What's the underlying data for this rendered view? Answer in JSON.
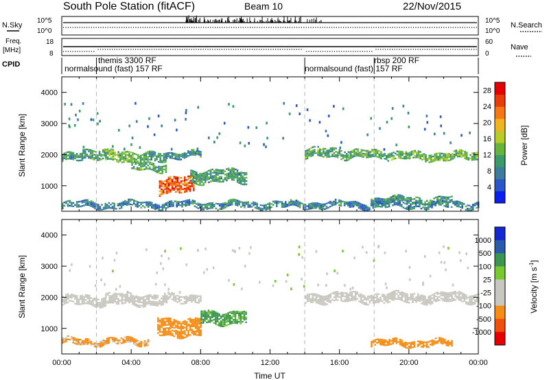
{
  "header": {
    "station": "South Pole Station (fitACF)",
    "beam": "Beam 10",
    "date": "22/Nov/2015"
  },
  "strips": {
    "nsky": {
      "label": "N.Sky",
      "ticks_left": [
        "10^5",
        "10^0"
      ],
      "right_label": "N.Search",
      "ticks_right": [
        "10^5",
        "10^0"
      ]
    },
    "freq": {
      "label_line1": "Freq.",
      "label_line2": "[MHz]",
      "ticks_left": [
        "18",
        "8"
      ],
      "right_label": "Nave",
      "ticks_right": [
        "60",
        "0"
      ]
    },
    "cpid": {
      "label": "CPID",
      "segments": [
        {
          "start_hour": 0,
          "text": "normalsound (fast) 157 RF",
          "row": 2
        },
        {
          "start_hour": 2.0,
          "text": "themis 3300 RF",
          "row": 1
        },
        {
          "start_hour": 14.0,
          "text": "normalsound (fast) 157 RF",
          "row": 2
        },
        {
          "start_hour": 18.0,
          "text": "rbsp 200 RF",
          "row": 1
        }
      ],
      "boundaries_hours": [
        2.0,
        14.0,
        18.0
      ]
    }
  },
  "chart_data": [
    {
      "type": "heatmap",
      "name": "power",
      "ylabel": "Slant Range [km]",
      "ylim": [
        180,
        4500
      ],
      "yticks": [
        1000,
        2000,
        3000,
        4000
      ],
      "xlim": [
        0,
        24
      ],
      "colorbar": {
        "label": "Power [dB]",
        "ticks": [
          4,
          8,
          12,
          16,
          20,
          24,
          28
        ],
        "range": [
          0,
          30
        ],
        "colors": [
          "#0a1ef0",
          "#2a56c8",
          "#3b7d9a",
          "#3b9a6a",
          "#66b43c",
          "#b8cc28",
          "#f0b41e",
          "#f57814",
          "#e83c0a",
          "#e60000"
        ]
      },
      "regions": [
        {
          "t0": 0.0,
          "t1": 1.2,
          "r_center": 1900,
          "r_width": 260,
          "value": 10
        },
        {
          "t0": 1.2,
          "t1": 2.5,
          "r_center": 2050,
          "r_width": 300,
          "value": 11
        },
        {
          "t0": 2.5,
          "t1": 4.5,
          "r_center": 1950,
          "r_width": 320,
          "value": 13
        },
        {
          "t0": 4.5,
          "t1": 6.0,
          "r_center": 1900,
          "r_width": 280,
          "value": 10
        },
        {
          "t0": 6.0,
          "t1": 8.0,
          "r_center": 2000,
          "r_width": 200,
          "value": 9
        },
        {
          "t0": 4.0,
          "t1": 6.0,
          "r_center": 1600,
          "r_width": 260,
          "value": 11
        },
        {
          "t0": 5.6,
          "t1": 7.6,
          "r_center": 1000,
          "r_width": 520,
          "value": 24
        },
        {
          "t0": 7.4,
          "t1": 10.6,
          "r_center": 1300,
          "r_width": 420,
          "value": 10
        },
        {
          "t0": 14.0,
          "t1": 16.5,
          "r_center": 2050,
          "r_width": 300,
          "value": 11
        },
        {
          "t0": 16.5,
          "t1": 20.0,
          "r_center": 2000,
          "r_width": 260,
          "value": 12
        },
        {
          "t0": 20.0,
          "t1": 24.0,
          "r_center": 1950,
          "r_width": 260,
          "value": 13
        },
        {
          "t0": 17.8,
          "t1": 22.5,
          "r_center": 550,
          "r_width": 180,
          "value": 10
        },
        {
          "t0": 0.0,
          "t1": 24.0,
          "r_center": 400,
          "r_width": 180,
          "value": 8
        }
      ]
    },
    {
      "type": "heatmap",
      "name": "velocity",
      "ylabel": "Slant Range [km]",
      "xlabel": "Time UT",
      "ylim": [
        180,
        4500
      ],
      "yticks": [
        1000,
        2000,
        3000,
        4000
      ],
      "xlim": [
        0,
        24
      ],
      "xticks": [
        "00:00",
        "04:00",
        "08:00",
        "12:00",
        "16:00",
        "20:00",
        "00:00"
      ],
      "colorbar": {
        "label": "Velocity [m s^-1]",
        "ticks": [
          1000,
          500,
          100,
          25,
          -25,
          -100,
          -500,
          -1000
        ],
        "colors": [
          "#e60000",
          "#f0500a",
          "#f58c14",
          "#c8c8c0",
          "#c8c8c0",
          "#78c832",
          "#3c9650",
          "#2a5aaa",
          "#1428d2"
        ]
      },
      "regions": [
        {
          "t0": 0.0,
          "t1": 2.5,
          "r_center": 1900,
          "r_width": 300,
          "value": 0
        },
        {
          "t0": 2.5,
          "t1": 6.0,
          "r_center": 1950,
          "r_width": 320,
          "value": 0
        },
        {
          "t0": 6.0,
          "t1": 8.0,
          "r_center": 2000,
          "r_width": 220,
          "value": 0
        },
        {
          "t0": 5.5,
          "t1": 8.0,
          "r_center": 1050,
          "r_width": 560,
          "value": -300
        },
        {
          "t0": 8.0,
          "t1": 10.6,
          "r_center": 1350,
          "r_width": 420,
          "value": 150
        },
        {
          "t0": 14.0,
          "t1": 24.0,
          "r_center": 2000,
          "r_width": 280,
          "value": 0
        },
        {
          "t0": 17.8,
          "t1": 22.5,
          "r_center": 550,
          "r_width": 160,
          "value": -300
        },
        {
          "t0": 0.0,
          "t1": 5.0,
          "r_center": 600,
          "r_width": 160,
          "value": -150
        }
      ]
    }
  ]
}
